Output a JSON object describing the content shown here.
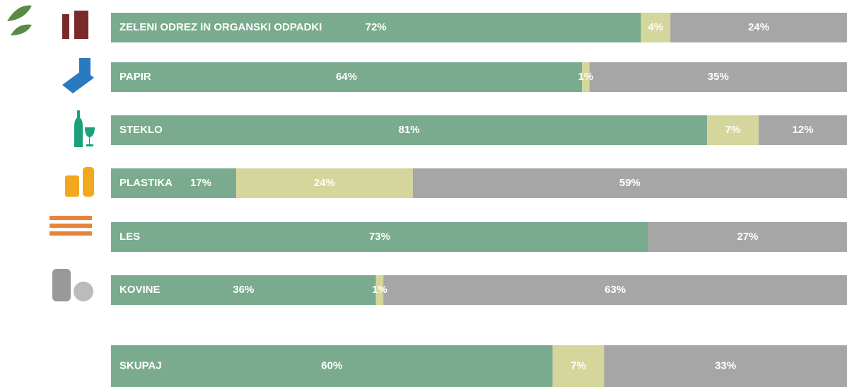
{
  "chart_data": {
    "type": "bar",
    "horizontal": true,
    "stacked": true,
    "categories": [
      "ZELENI ODREZ IN ORGANSKI ODPADKI",
      "PAPIR",
      "STEKLO",
      "PLASTIKA",
      "LES",
      "KOVINE",
      "SKUPAJ"
    ],
    "series": [
      {
        "color": "#7aab8f",
        "values": [
          72,
          64,
          81,
          17,
          73,
          36,
          60
        ],
        "value_labels": [
          "72%",
          "64%",
          "81%",
          "17%",
          "73%",
          "36%",
          "60%"
        ]
      },
      {
        "color": "#d4d69c",
        "values": [
          4,
          1,
          7,
          24,
          null,
          1,
          7
        ],
        "value_labels": [
          "4%",
          "1%",
          "7%",
          "24%",
          null,
          "1%",
          "7%"
        ]
      },
      {
        "color": "#a6a6a6",
        "values": [
          24,
          35,
          12,
          59,
          27,
          63,
          33
        ],
        "value_labels": [
          "24%",
          "35%",
          "12%",
          "59%",
          "27%",
          "63%",
          "33%"
        ]
      }
    ],
    "xlim": [
      0,
      100
    ]
  }
}
